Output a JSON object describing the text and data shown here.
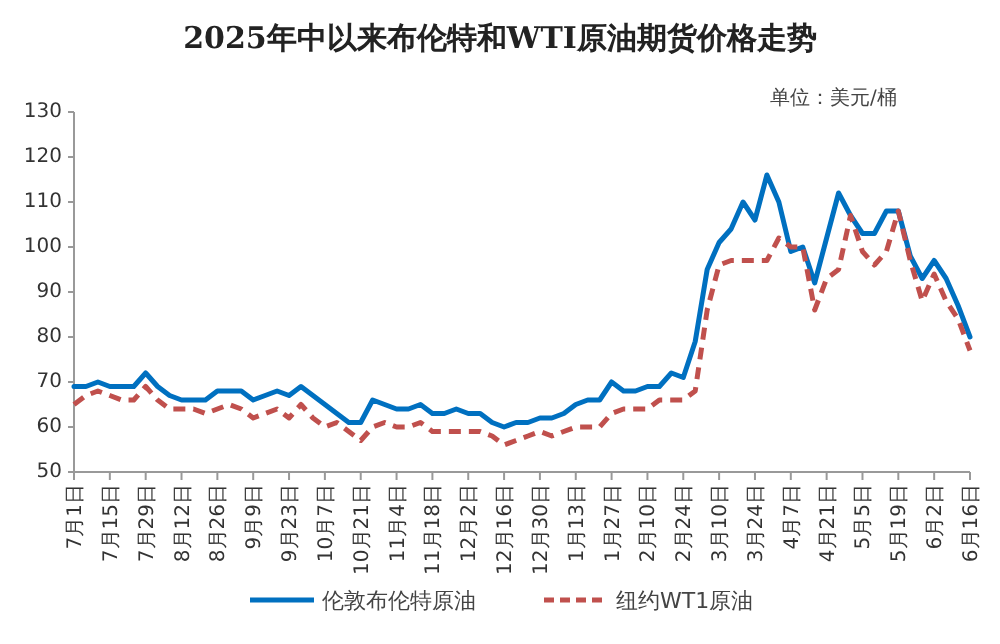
{
  "chart_data": {
    "type": "line",
    "title": "2025年中以来布伦特和WTI原油期货价格走势",
    "annotations": [
      "单位：美元/桶"
    ],
    "categories": [
      "7月1日",
      null,
      null,
      "7月15日",
      null,
      null,
      "7月29日",
      null,
      null,
      "8月12日",
      null,
      null,
      "8月26日",
      null,
      null,
      "9月9日",
      null,
      null,
      "9月23日",
      null,
      null,
      "10月7日",
      null,
      null,
      "10月21日",
      null,
      null,
      "11月4日",
      null,
      null,
      "11月18日",
      null,
      null,
      "12月2日",
      null,
      null,
      "12月16日",
      null,
      null,
      "12月30日",
      null,
      null,
      "1月13日",
      null,
      null,
      "1月27日",
      null,
      null,
      "2月10日",
      null,
      null,
      "2月24日",
      null,
      null,
      "3月10日",
      null,
      null,
      "3月24日",
      null,
      null,
      "4月7日",
      null,
      null,
      "4月21日",
      null,
      null,
      "5月5日",
      null,
      null,
      "5月19日",
      null,
      null,
      "6月2日",
      null,
      null,
      "6月16日"
    ],
    "series": [
      {
        "name": "伦敦布伦特原油",
        "color": "#0070c0",
        "line_style": "solid",
        "values": [
          69,
          69,
          70,
          69,
          69,
          69,
          72,
          69,
          67,
          66,
          66,
          66,
          68,
          68,
          68,
          66,
          67,
          68,
          67,
          69,
          67,
          65,
          63,
          61,
          61,
          66,
          65,
          64,
          64,
          65,
          63,
          63,
          64,
          63,
          63,
          61,
          60,
          61,
          61,
          62,
          62,
          63,
          65,
          66,
          66,
          70,
          68,
          68,
          69,
          69,
          72,
          71,
          79,
          95,
          101,
          104,
          110,
          106,
          116,
          110,
          99,
          100,
          92,
          102,
          112,
          107,
          103,
          103,
          108,
          108,
          98,
          93,
          97,
          93,
          87,
          80
        ]
      },
      {
        "name": "纽约WT1原油",
        "color": "#c0504d",
        "line_style": "dashed",
        "values": [
          65,
          67,
          68,
          67,
          66,
          66,
          69,
          66,
          64,
          64,
          64,
          63,
          64,
          65,
          64,
          62,
          63,
          64,
          62,
          65,
          62,
          60,
          61,
          59,
          57,
          60,
          61,
          60,
          60,
          61,
          59,
          59,
          59,
          59,
          59,
          58,
          56,
          57,
          58,
          59,
          58,
          59,
          60,
          60,
          60,
          63,
          64,
          64,
          64,
          66,
          66,
          66,
          68,
          86,
          96,
          97,
          97,
          97,
          97,
          102,
          100,
          100,
          86,
          93,
          95,
          107,
          99,
          96,
          99,
          108,
          97,
          88,
          94,
          88,
          84,
          77
        ]
      }
    ],
    "ylim": [
      50,
      130
    ],
    "yticks": [
      50,
      60,
      70,
      80,
      90,
      100,
      110,
      120,
      130
    ],
    "legend": "bottom",
    "grid": false
  }
}
